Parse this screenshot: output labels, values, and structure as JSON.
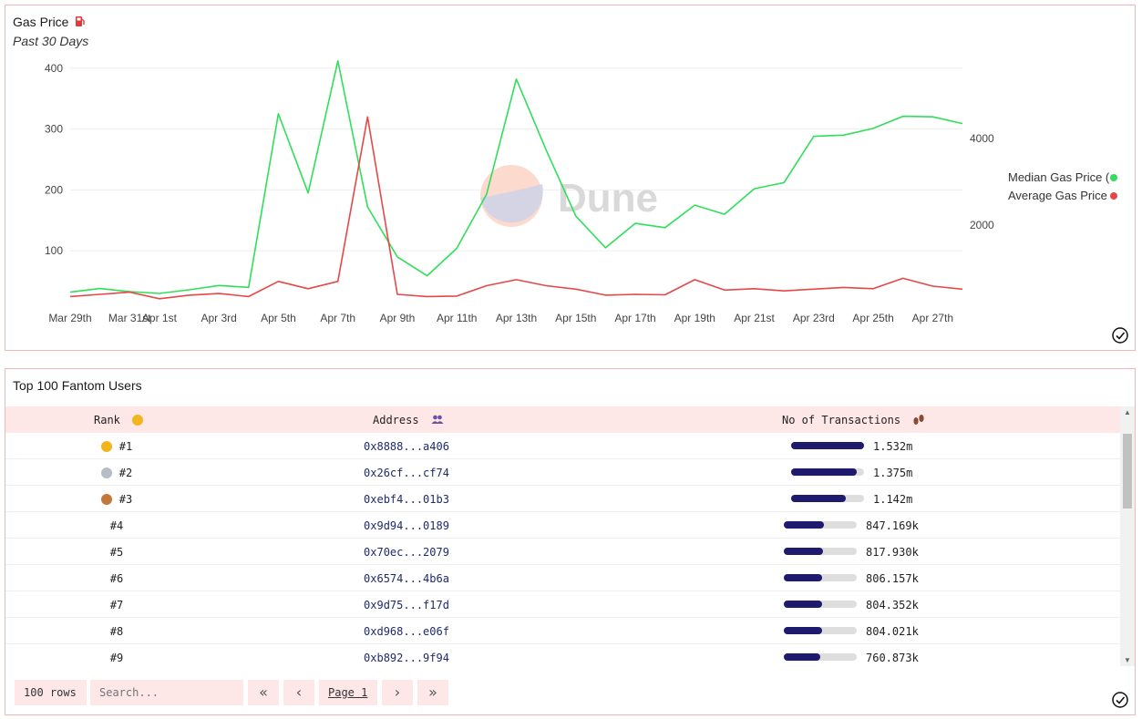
{
  "gas_panel": {
    "title": "Gas Price",
    "title_icon": "fuel-pump-icon",
    "subtitle": "Past 30 Days",
    "watermark": "Dune",
    "legend": [
      {
        "label": "Median Gas Price (",
        "color": "#2fdf5a"
      },
      {
        "label": "Average Gas Price",
        "color": "#e54848"
      }
    ]
  },
  "chart_data": {
    "type": "line",
    "x_tick_labels": [
      "Mar 29th",
      "Mar 31st",
      "Apr 1st",
      "Apr 3rd",
      "Apr 5th",
      "Apr 7th",
      "Apr 9th",
      "Apr 11th",
      "Apr 13th",
      "Apr 15th",
      "Apr 17th",
      "Apr 19th",
      "Apr 21st",
      "Apr 23rd",
      "Apr 25th",
      "Apr 27th"
    ],
    "x": [
      "Mar 29",
      "Mar 30",
      "Mar 31",
      "Apr 1",
      "Apr 2",
      "Apr 3",
      "Apr 4",
      "Apr 5",
      "Apr 6",
      "Apr 7",
      "Apr 8",
      "Apr 9",
      "Apr 10",
      "Apr 11",
      "Apr 12",
      "Apr 13",
      "Apr 14",
      "Apr 15",
      "Apr 16",
      "Apr 17",
      "Apr 18",
      "Apr 19",
      "Apr 20",
      "Apr 21",
      "Apr 22",
      "Apr 23",
      "Apr 24",
      "Apr 25",
      "Apr 26",
      "Apr 27",
      "Apr 28"
    ],
    "y_left_ticks": [
      100,
      200,
      300,
      400
    ],
    "y_left_range": [
      0,
      430
    ],
    "y_right_ticks": [
      2000,
      4000
    ],
    "y_right_range": [
      0,
      4500
    ],
    "series": [
      {
        "name": "Median Gas Price (",
        "axis": "left",
        "color": "#2fdf5a",
        "values": [
          32,
          38,
          33,
          30,
          36,
          43,
          40,
          325,
          195,
          412,
          172,
          90,
          59,
          104,
          193,
          382,
          266,
          157,
          105,
          145,
          138,
          175,
          160,
          202,
          212,
          288,
          290,
          301,
          321,
          320,
          309
        ]
      },
      {
        "name": "Average Gas Price",
        "axis": "right",
        "color": "#e54848",
        "values": [
          350,
          400,
          450,
          300,
          380,
          420,
          350,
          700,
          530,
          700,
          4500,
          400,
          350,
          360,
          600,
          740,
          600,
          520,
          380,
          400,
          390,
          740,
          500,
          530,
          480,
          520,
          560,
          530,
          770,
          590,
          520
        ]
      }
    ],
    "grid": true
  },
  "table_panel": {
    "title": "Top 100 Fantom Users",
    "columns": {
      "rank": "Rank",
      "address": "Address",
      "tx": "No of Transactions"
    },
    "column_icons": {
      "rank": "medal-icon",
      "address": "users-icon",
      "tx": "footprints-icon"
    },
    "max_tx": 1532000,
    "rows": [
      {
        "rank": "#1",
        "medal": "gold",
        "address": "0x8888...a406",
        "tx": "1.532m",
        "tx_value": 1532000
      },
      {
        "rank": "#2",
        "medal": "silver",
        "address": "0x26cf...cf74",
        "tx": "1.375m",
        "tx_value": 1375000
      },
      {
        "rank": "#3",
        "medal": "bronze",
        "address": "0xebf4...01b3",
        "tx": "1.142m",
        "tx_value": 1142000
      },
      {
        "rank": "#4",
        "medal": "",
        "address": "0x9d94...0189",
        "tx": "847.169k",
        "tx_value": 847169
      },
      {
        "rank": "#5",
        "medal": "",
        "address": "0x70ec...2079",
        "tx": "817.930k",
        "tx_value": 817930
      },
      {
        "rank": "#6",
        "medal": "",
        "address": "0x6574...4b6a",
        "tx": "806.157k",
        "tx_value": 806157
      },
      {
        "rank": "#7",
        "medal": "",
        "address": "0x9d75...f17d",
        "tx": "804.352k",
        "tx_value": 804352
      },
      {
        "rank": "#8",
        "medal": "",
        "address": "0xd968...e06f",
        "tx": "804.021k",
        "tx_value": 804021
      },
      {
        "rank": "#9",
        "medal": "",
        "address": "0xb892...9f94",
        "tx": "760.873k",
        "tx_value": 760873
      }
    ],
    "medal_colors": {
      "gold": "#f2b51d",
      "silver": "#b8bcc4",
      "bronze": "#c27a3a"
    },
    "footer": {
      "rows_label": "100 rows",
      "search_placeholder": "Search...",
      "page_label": "Page 1"
    }
  }
}
